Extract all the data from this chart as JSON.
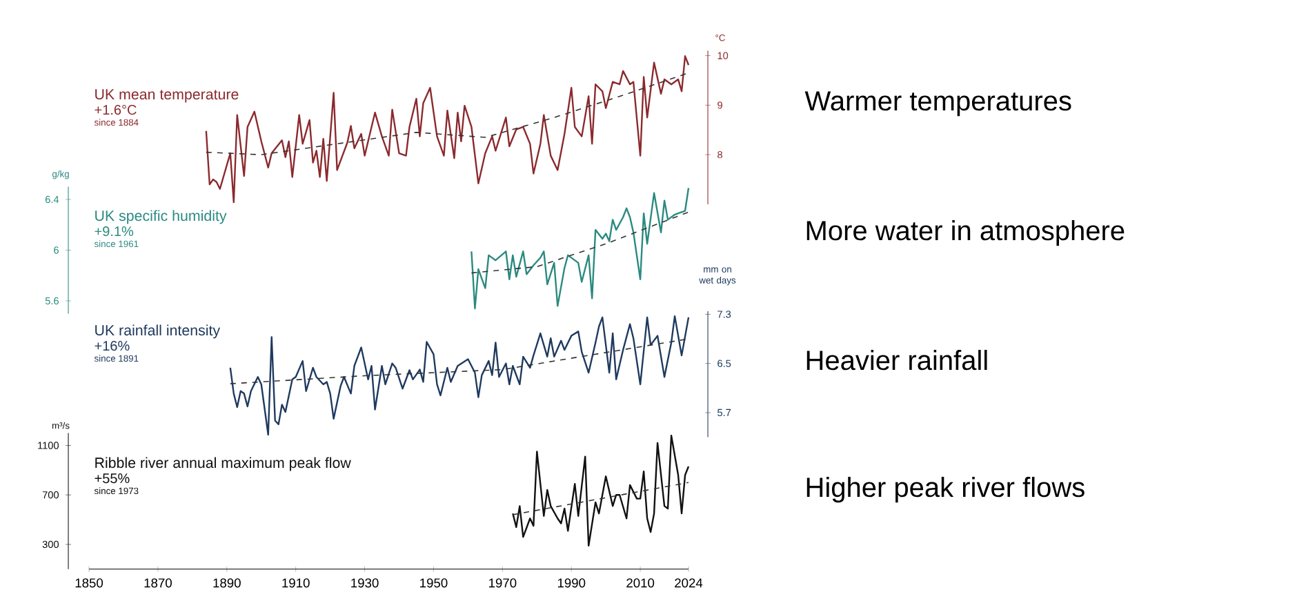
{
  "chart_data": [
    {
      "type": "line",
      "title": "UK mean temperature",
      "annotations": [
        "+1.6°C",
        "since 1884",
        "Warmer temperatures"
      ],
      "y2label": "°C",
      "xlim": [
        1850,
        2024
      ],
      "xticks": [
        1850,
        1870,
        1890,
        1910,
        1930,
        1950,
        1970,
        1990,
        2010,
        2024
      ],
      "y2lim": [
        7,
        10.1
      ],
      "y2ticks": [
        8,
        9,
        10
      ],
      "tick_labels": "y",
      "series": [
        {
          "color": "#8b2a2e",
          "axis": "y2",
          "x": [
            1884,
            1885,
            1886,
            1887,
            1888,
            1891,
            1892,
            1893,
            1895,
            1896,
            1898,
            1900,
            1902,
            1903,
            1906,
            1907,
            1908,
            1909,
            1911,
            1912,
            1914,
            1915,
            1916,
            1917,
            1918,
            1919,
            1921,
            1922,
            1925,
            1926,
            1927,
            1929,
            1930,
            1931,
            1933,
            1935,
            1937,
            1938,
            1940,
            1942,
            1943,
            1945,
            1946,
            1947,
            1949,
            1951,
            1953,
            1954,
            1956,
            1957,
            1958,
            1959,
            1961,
            1963,
            1965,
            1967,
            1968,
            1971,
            1972,
            1974,
            1976,
            1978,
            1979,
            1981,
            1982,
            1984,
            1986,
            1988,
            1990,
            1991,
            1993,
            1995,
            1996,
            1997,
            1999,
            2000,
            2002,
            2004,
            2005,
            2007,
            2008,
            2010,
            2011,
            2012,
            2014,
            2016,
            2017,
            2019,
            2021,
            2022,
            2023,
            2024
          ],
          "values": [
            8.48,
            7.4,
            7.5,
            7.45,
            7.31,
            8.03,
            7.04,
            8.8,
            7.57,
            8.56,
            8.87,
            8.27,
            7.74,
            8.03,
            8.29,
            7.95,
            8.27,
            7.55,
            8.8,
            8.22,
            8.7,
            7.84,
            8.08,
            7.55,
            8.32,
            7.47,
            9.25,
            7.69,
            8.25,
            8.58,
            8.13,
            8.42,
            7.98,
            8.27,
            8.85,
            8.37,
            7.98,
            8.91,
            8.03,
            7.98,
            8.56,
            9.13,
            8.37,
            9.04,
            9.35,
            8.37,
            7.98,
            8.89,
            7.93,
            8.85,
            8.27,
            8.99,
            8.56,
            7.42,
            8.03,
            8.37,
            8.08,
            8.75,
            8.17,
            8.51,
            8.56,
            8.22,
            7.62,
            8.22,
            8.8,
            7.98,
            7.69,
            8.42,
            9.35,
            8.56,
            8.37,
            9.18,
            8.22,
            9.42,
            9.28,
            8.94,
            9.47,
            9.42,
            9.69,
            9.42,
            9.47,
            7.98,
            9.57,
            8.75,
            9.86,
            9.23,
            9.52,
            9.42,
            9.52,
            9.28,
            9.99,
            9.81
          ]
        },
        {
          "type": "line",
          "line_style": "dashed",
          "color": "#333333",
          "axis": "y2",
          "x": [
            1884,
            1900,
            1920,
            1945,
            1965,
            1985,
            2005,
            2024
          ],
          "values": [
            8.05,
            8.0,
            8.2,
            8.45,
            8.35,
            8.75,
            9.2,
            9.65
          ]
        }
      ]
    },
    {
      "type": "line",
      "title": "UK specific humidity",
      "annotations": [
        "+9.1%",
        "since 1961",
        "More water in atmosphere"
      ],
      "ylabel": "g/kg",
      "xlim": [
        1850,
        2024
      ],
      "xticks": [
        1850,
        1870,
        1890,
        1910,
        1930,
        1950,
        1970,
        1990,
        2010,
        2024
      ],
      "ylim": [
        5.5,
        6.5
      ],
      "yticks": [
        5.6,
        6,
        6.4
      ],
      "tick_labels": "y",
      "series": [
        {
          "color": "#2a8a80",
          "x": [
            1961,
            1962,
            1963,
            1965,
            1966,
            1968,
            1971,
            1972,
            1973,
            1974,
            1976,
            1977,
            1979,
            1981,
            1982,
            1983,
            1985,
            1986,
            1988,
            1989,
            1992,
            1993,
            1995,
            1996,
            1997,
            1999,
            2000,
            2001,
            2002,
            2003,
            2005,
            2006,
            2007,
            2008,
            2010,
            2011,
            2012,
            2014,
            2016,
            2017,
            2018,
            2020,
            2021,
            2023,
            2024
          ],
          "values": [
            5.99,
            5.54,
            5.85,
            5.7,
            5.96,
            5.92,
            5.99,
            5.77,
            5.96,
            5.79,
            5.99,
            5.81,
            5.88,
            5.94,
            5.99,
            5.73,
            5.9,
            5.56,
            5.86,
            5.96,
            5.9,
            5.75,
            5.96,
            5.62,
            6.16,
            6.09,
            6.13,
            6.07,
            6.24,
            6.16,
            6.26,
            6.33,
            6.26,
            6.14,
            5.77,
            6.29,
            6.05,
            6.45,
            6.14,
            6.39,
            6.24,
            6.28,
            6.29,
            6.31,
            6.49
          ]
        },
        {
          "type": "line",
          "line_style": "dashed",
          "color": "#333333",
          "x": [
            1961,
            1980,
            2000,
            2024
          ],
          "values": [
            5.82,
            5.87,
            6.05,
            6.3
          ]
        }
      ]
    },
    {
      "type": "line",
      "title": "UK rainfall intensity",
      "annotations": [
        "+16%",
        "since 1891",
        "Heavier rainfall"
      ],
      "y2label": "mm on wet days",
      "xlim": [
        1850,
        2024
      ],
      "xticks": [
        1850,
        1870,
        1890,
        1910,
        1930,
        1950,
        1970,
        1990,
        2010,
        2024
      ],
      "y2lim": [
        5.3,
        7.35
      ],
      "y2ticks": [
        5.7,
        6.5,
        7.3
      ],
      "tick_labels": "y",
      "series": [
        {
          "color": "#1f3a5f",
          "axis": "y2",
          "x": [
            1891,
            1892,
            1893,
            1894,
            1895,
            1896,
            1897,
            1899,
            1900,
            1902,
            1903,
            1904,
            1905,
            1906,
            1907,
            1909,
            1910,
            1912,
            1913,
            1915,
            1916,
            1918,
            1919,
            1920,
            1921,
            1923,
            1924,
            1926,
            1927,
            1929,
            1931,
            1932,
            1933,
            1935,
            1936,
            1938,
            1939,
            1941,
            1943,
            1944,
            1946,
            1947,
            1948,
            1950,
            1951,
            1952,
            1954,
            1955,
            1957,
            1960,
            1962,
            1963,
            1964,
            1966,
            1967,
            1968,
            1969,
            1971,
            1972,
            1973,
            1975,
            1976,
            1978,
            1979,
            1981,
            1983,
            1984,
            1985,
            1987,
            1988,
            1990,
            1992,
            1993,
            1995,
            1997,
            1998,
            1999,
            2001,
            2002,
            2003,
            2005,
            2007,
            2008,
            2010,
            2012,
            2013,
            2015,
            2017,
            2019,
            2020,
            2022,
            2024
          ],
          "values": [
            6.43,
            6.01,
            5.79,
            6.05,
            6.01,
            5.8,
            6.05,
            6.28,
            6.16,
            5.34,
            6.93,
            5.57,
            5.51,
            5.83,
            5.71,
            6.24,
            6.28,
            6.54,
            6.05,
            6.43,
            6.28,
            6.16,
            6.2,
            6.01,
            5.6,
            6.13,
            6.28,
            6.01,
            6.46,
            6.76,
            6.24,
            6.46,
            5.75,
            6.46,
            6.16,
            6.5,
            6.43,
            6.09,
            6.39,
            6.24,
            6.4,
            6.2,
            6.85,
            6.65,
            6.16,
            5.98,
            6.43,
            6.2,
            6.46,
            6.57,
            6.35,
            5.95,
            6.31,
            6.54,
            6.31,
            6.84,
            6.28,
            6.5,
            6.16,
            6.46,
            6.16,
            6.61,
            6.43,
            6.63,
            6.99,
            6.61,
            6.91,
            6.61,
            6.87,
            6.72,
            6.95,
            7.02,
            6.69,
            6.35,
            6.84,
            7.1,
            7.25,
            6.35,
            6.99,
            6.24,
            6.72,
            7.14,
            6.91,
            6.16,
            7.25,
            6.8,
            6.95,
            6.28,
            6.84,
            7.27,
            6.63,
            7.25
          ]
        },
        {
          "type": "line",
          "line_style": "dashed",
          "color": "#333333",
          "axis": "y2",
          "x": [
            1891,
            1930,
            1970,
            2024
          ],
          "values": [
            6.17,
            6.3,
            6.4,
            6.9
          ]
        }
      ]
    },
    {
      "type": "line",
      "title": "Ribble river annual maximum peak flow",
      "annotations": [
        "+55%",
        "since 1973",
        "Higher peak river flows"
      ],
      "ylabel": "m³/s",
      "xlim": [
        1850,
        2024
      ],
      "xticks": [
        1850,
        1870,
        1890,
        1910,
        1930,
        1950,
        1970,
        1990,
        2010,
        2024
      ],
      "ylim": [
        100,
        1200
      ],
      "yticks": [
        300,
        700,
        1100
      ],
      "series": [
        {
          "color": "#111111",
          "x": [
            1973,
            1974,
            1975,
            1976,
            1978,
            1979,
            1980,
            1982,
            1983,
            1984,
            1986,
            1987,
            1988,
            1989,
            1991,
            1992,
            1994,
            1995,
            1997,
            1998,
            2000,
            2002,
            2003,
            2004,
            2006,
            2007,
            2009,
            2010,
            2011,
            2012,
            2013,
            2014,
            2015,
            2017,
            2018,
            2019,
            2021,
            2022,
            2023,
            2024
          ],
          "values": [
            550,
            440,
            610,
            360,
            510,
            450,
            1050,
            530,
            740,
            610,
            510,
            470,
            590,
            410,
            790,
            530,
            1010,
            290,
            640,
            550,
            850,
            610,
            700,
            700,
            510,
            780,
            670,
            670,
            890,
            510,
            400,
            550,
            1120,
            610,
            590,
            1180,
            860,
            550,
            860,
            930
          ]
        },
        {
          "type": "line",
          "line_style": "dashed",
          "color": "#333333",
          "x": [
            1973,
            2024
          ],
          "values": [
            540,
            800
          ]
        }
      ]
    }
  ]
}
